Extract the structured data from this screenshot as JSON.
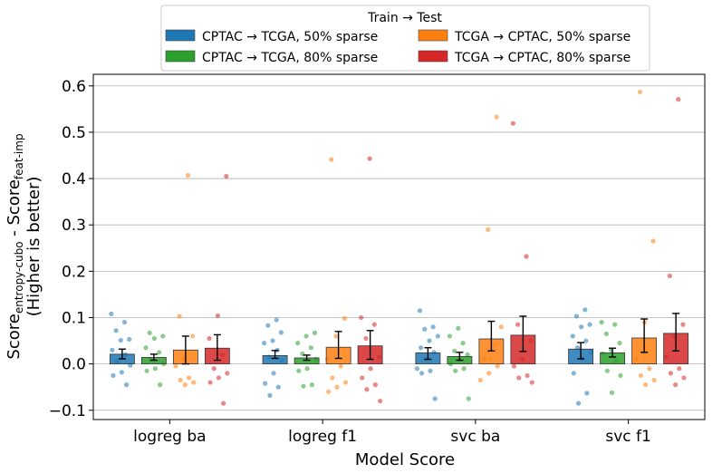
{
  "chart_data": {
    "type": "bar",
    "title": "",
    "xlabel": "Model Score",
    "ylabel": {
      "prefix": "Score",
      "sub1": "entropy-cubo",
      "mid": " - Score",
      "sub2": "feat-imp",
      "line2": "(Higher is better)"
    },
    "ylim": [
      -0.12,
      0.625
    ],
    "yticks": [
      -0.1,
      0.0,
      0.1,
      0.2,
      0.3,
      0.4,
      0.5,
      0.6
    ],
    "ytick_labels": [
      "−0.1",
      "0.0",
      "0.1",
      "0.2",
      "0.3",
      "0.4",
      "0.5",
      "0.6"
    ],
    "grid": "horizontal",
    "legend": {
      "title": "Train → Test",
      "placement": "top-outside",
      "entries": [
        "CPTAC → TCGA, 50% sparse",
        "CPTAC → TCGA, 80% sparse",
        "TCGA → CPTAC, 50% sparse",
        "TCGA → CPTAC, 80% sparse"
      ]
    },
    "categories": [
      "logreg ba",
      "logreg f1",
      "svc ba",
      "svc f1"
    ],
    "series": [
      {
        "name": "CPTAC → TCGA, 50% sparse",
        "color": "#1f77b4",
        "values": [
          0.021,
          0.018,
          0.024,
          0.032
        ],
        "err_low": [
          0.011,
          0.012,
          0.01,
          0.011
        ],
        "err_high": [
          0.032,
          0.029,
          0.035,
          0.046
        ],
        "points": [
          [
            0.108,
            0.09,
            0.072,
            0.053,
            0.051,
            0.03,
            0.02,
            0.005,
            -0.003,
            -0.018,
            -0.025,
            -0.045
          ],
          [
            0.095,
            0.083,
            0.068,
            0.05,
            0.045,
            0.03,
            0.015,
            0.008,
            -0.02,
            -0.042,
            -0.05,
            -0.068
          ],
          [
            0.115,
            0.08,
            0.075,
            0.06,
            0.05,
            0.035,
            0.025,
            0.01,
            -0.01,
            -0.015,
            -0.02,
            -0.075
          ],
          [
            0.117,
            0.103,
            0.085,
            0.08,
            0.06,
            0.05,
            0.035,
            0.025,
            0.012,
            -0.02,
            -0.063,
            -0.085
          ]
        ]
      },
      {
        "name": "CPTAC → TCGA, 80% sparse",
        "color": "#2ca02c",
        "values": [
          0.014,
          0.013,
          0.016,
          0.024
        ],
        "err_low": [
          0.008,
          0.008,
          0.008,
          0.015
        ],
        "err_high": [
          0.021,
          0.019,
          0.025,
          0.034
        ],
        "points": [
          [
            0.067,
            0.06,
            0.055,
            0.035,
            0.025,
            0.01,
            0.0,
            -0.01,
            -0.015,
            -0.045
          ],
          [
            0.067,
            0.06,
            0.045,
            0.035,
            0.022,
            0.01,
            -0.01,
            -0.015,
            -0.045,
            -0.048
          ],
          [
            0.077,
            0.06,
            0.045,
            0.028,
            0.02,
            0.01,
            0.0,
            -0.01,
            -0.015,
            -0.075
          ],
          [
            0.09,
            0.085,
            0.065,
            0.045,
            0.03,
            0.022,
            0.005,
            -0.015,
            -0.025,
            -0.062
          ]
        ]
      },
      {
        "name": "TCGA → CPTAC, 50% sparse",
        "color": "#ff7f0e",
        "values": [
          0.03,
          0.036,
          0.054,
          0.056
        ],
        "err_low": [
          0.0,
          0.012,
          0.028,
          0.025
        ],
        "err_high": [
          0.06,
          0.07,
          0.092,
          0.097
        ],
        "points": [
          [
            0.407,
            0.103,
            0.06,
            0.01,
            -0.005,
            -0.03,
            -0.035,
            -0.04,
            -0.045
          ],
          [
            0.441,
            0.098,
            0.06,
            0.01,
            -0.005,
            -0.03,
            -0.04,
            -0.05,
            -0.06
          ],
          [
            0.533,
            0.29,
            0.08,
            0.04,
            0.01,
            -0.005,
            -0.02,
            -0.035
          ],
          [
            0.587,
            0.265,
            0.09,
            0.01,
            -0.01,
            -0.025,
            -0.035,
            -0.045
          ]
        ]
      },
      {
        "name": "TCGA → CPTAC, 80% sparse",
        "color": "#d62728",
        "values": [
          0.034,
          0.039,
          0.062,
          0.066
        ],
        "err_low": [
          0.008,
          0.01,
          0.027,
          0.028
        ],
        "err_high": [
          0.063,
          0.072,
          0.103,
          0.109
        ],
        "points": [
          [
            0.405,
            0.104,
            0.055,
            0.02,
            -0.01,
            -0.02,
            -0.03,
            -0.04,
            -0.085
          ],
          [
            0.443,
            0.1,
            0.085,
            0.055,
            0.015,
            -0.01,
            -0.03,
            -0.045,
            -0.055,
            -0.08
          ],
          [
            0.519,
            0.232,
            0.085,
            0.05,
            0.01,
            -0.005,
            -0.025,
            -0.03,
            -0.04
          ],
          [
            0.571,
            0.19,
            0.085,
            0.06,
            0.015,
            -0.01,
            -0.02,
            -0.03,
            -0.045
          ]
        ]
      }
    ]
  }
}
